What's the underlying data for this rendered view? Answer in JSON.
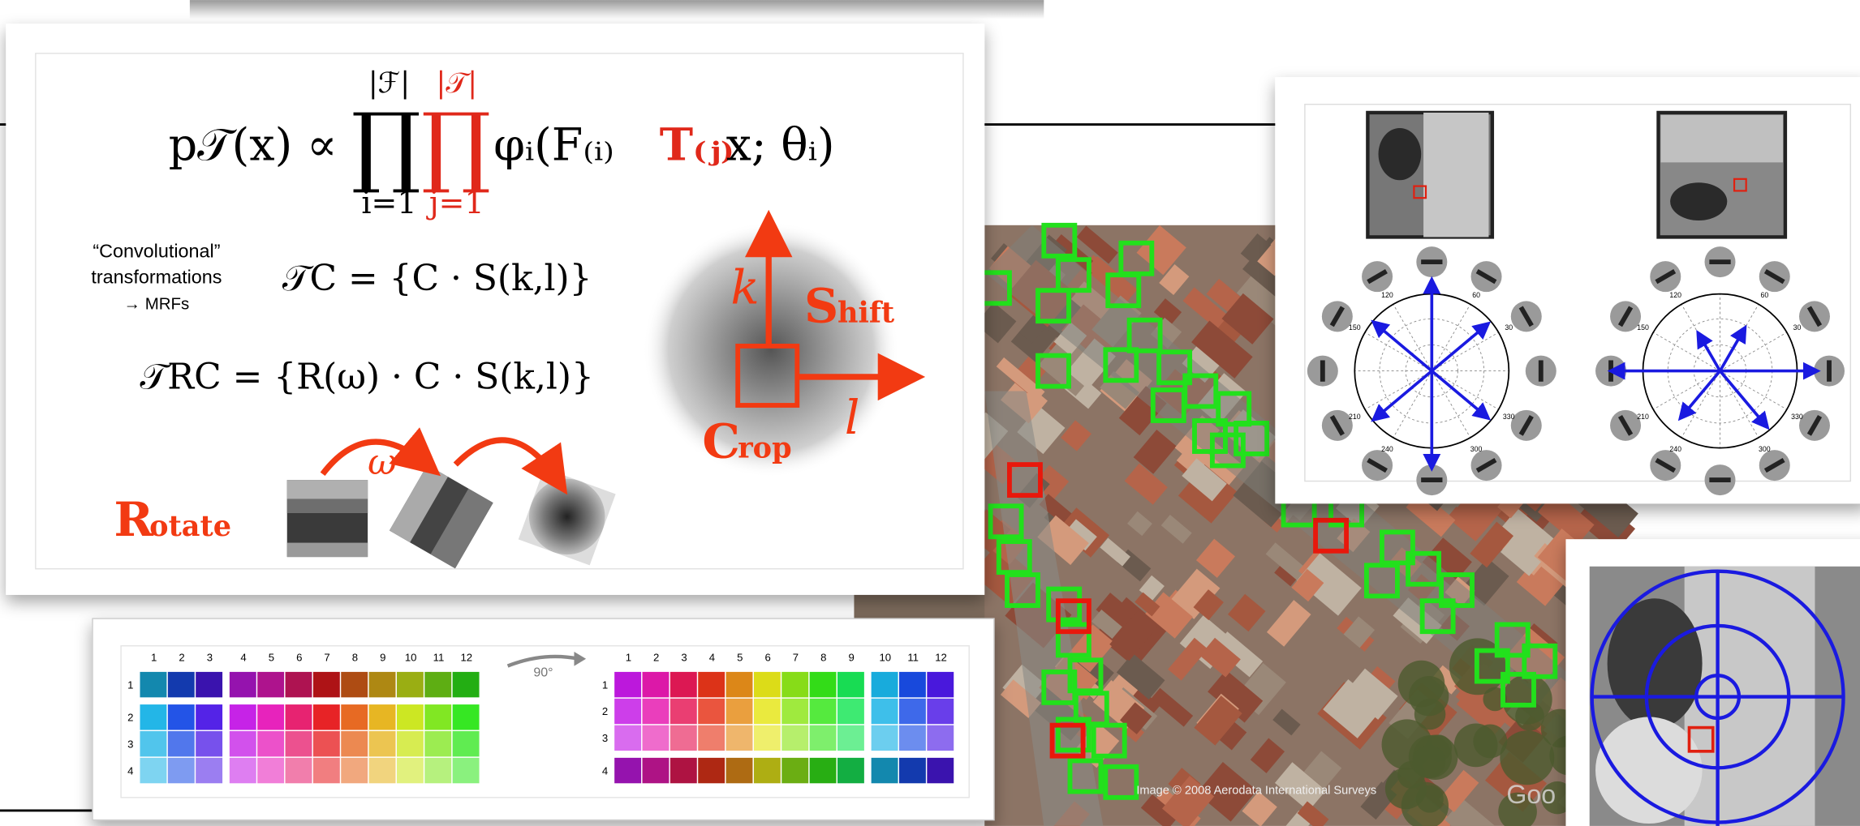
{
  "formula_main": {
    "lhs": "p𝒯(x) ∝",
    "prod": "∏",
    "upper_f": "|ℱ|",
    "lower_i": "i=1",
    "upper_t": "|𝒯|",
    "lower_j": "j=1",
    "body": "φᵢ(F₍ᵢ₎",
    "red_term": "T₍ⱼ₎",
    "tail": "x; θᵢ)"
  },
  "note": {
    "line1": "“Convolutional”",
    "line2": "transformations",
    "line3": "→ MRFs"
  },
  "formula_c": "𝒯C = {C · S(k,l)}",
  "formula_rc": "𝒯RC = {R(ω) · C · S(k,l)}",
  "diagram": {
    "k": "k",
    "l": "l",
    "omega": "ω",
    "shift_initial": "S",
    "shift_rest": "hift",
    "crop_initial": "C",
    "crop_rest": "rop",
    "rotate_initial": "R",
    "rotate_rest": "otate"
  },
  "color_grid": {
    "columns": [
      "1",
      "2",
      "3",
      "4",
      "5",
      "6",
      "7",
      "8",
      "9",
      "10",
      "11",
      "12"
    ],
    "rows": [
      "1",
      "2",
      "3",
      "4"
    ],
    "rotation": "90°"
  },
  "polar_labels": [
    "120",
    "60",
    "30",
    "150",
    "210",
    "240",
    "300",
    "330"
  ],
  "aerial": {
    "credit": "Image © 2008 Aerodata International Surveys",
    "logo": "Goo"
  }
}
